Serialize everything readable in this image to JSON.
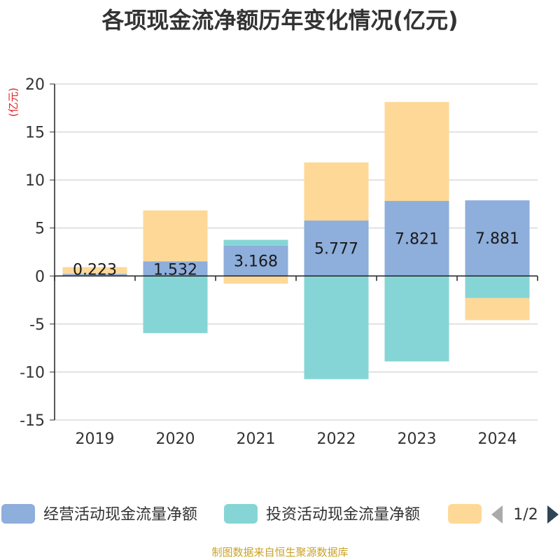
{
  "title": "各项现金流净额历年变化情况(亿元)",
  "source": "制图数据来自恒生聚源数据库",
  "chart_data": {
    "type": "bar",
    "stacked": true,
    "title": "各项现金流净额历年变化情况(亿元)",
    "unit_label": "(亿元)",
    "categories": [
      "2019",
      "2020",
      "2021",
      "2022",
      "2023",
      "2024"
    ],
    "ylim": [
      -15,
      20
    ],
    "yticks": [
      20,
      15,
      10,
      5,
      0,
      -5,
      -10,
      -15
    ],
    "ytick_labels": [
      "20",
      "15",
      "10",
      "5",
      "0",
      "-5",
      "-10",
      "-15"
    ],
    "grid": true,
    "series": [
      {
        "name": "经营活动现金流量净额",
        "color": "#8eaedb",
        "values": [
          0.223,
          1.532,
          3.168,
          5.777,
          7.821,
          7.881
        ],
        "labels": [
          "0.223",
          "1.532",
          "3.168",
          "5.777",
          "7.821",
          "7.881"
        ]
      },
      {
        "name": "投资活动现金流量净额",
        "color": "#86d5d6",
        "values": [
          -0.03,
          -5.95,
          0.6,
          -10.75,
          -8.9,
          -2.3
        ]
      },
      {
        "name": "",
        "color": "#fed897",
        "values": [
          0.7,
          5.3,
          -0.8,
          6.05,
          10.3,
          -2.3
        ]
      }
    ],
    "legend": {
      "position": "bottom",
      "page": "1/2"
    }
  }
}
